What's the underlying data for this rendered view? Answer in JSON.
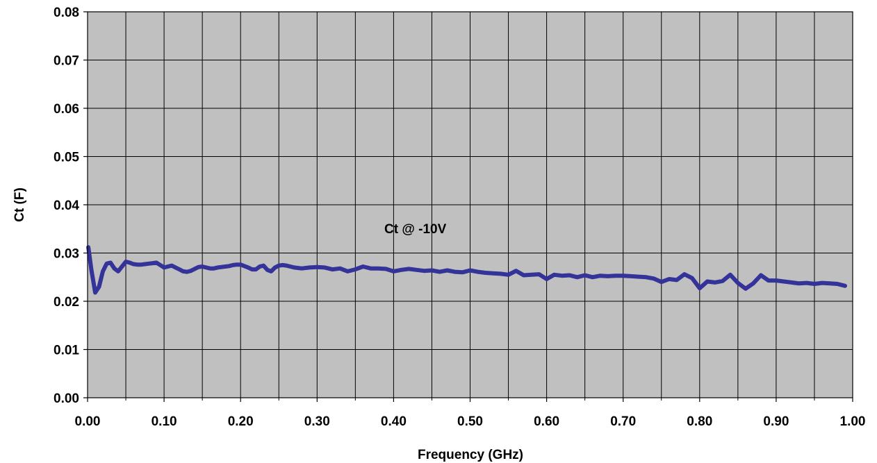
{
  "chart_data": {
    "type": "line",
    "title": "",
    "xlabel": "Frequency (GHz)",
    "ylabel": "Ct (F)",
    "xlim": [
      0,
      1.0
    ],
    "ylim": [
      0,
      0.08
    ],
    "x_ticks": [
      "0.00",
      "0.10",
      "0.20",
      "0.30",
      "0.40",
      "0.50",
      "0.60",
      "0.70",
      "0.80",
      "0.90",
      "1.00"
    ],
    "y_ticks": [
      "0.00",
      "0.01",
      "0.02",
      "0.03",
      "0.04",
      "0.05",
      "0.06",
      "0.07",
      "0.08"
    ],
    "x_minor_step": 0.05,
    "grid": true,
    "annotation": "Ct @ -10V",
    "colors": {
      "plot_background": "#c0c0c0",
      "line": "#333399",
      "grid": "#000000"
    },
    "series": [
      {
        "x": [
          0.001,
          0.005,
          0.01,
          0.015,
          0.02,
          0.025,
          0.03,
          0.035,
          0.04,
          0.045,
          0.05,
          0.055,
          0.06,
          0.065,
          0.07,
          0.075,
          0.08,
          0.085,
          0.09,
          0.095,
          0.1,
          0.105,
          0.11,
          0.115,
          0.12,
          0.125,
          0.13,
          0.135,
          0.14,
          0.145,
          0.15,
          0.155,
          0.16,
          0.165,
          0.17,
          0.175,
          0.18,
          0.185,
          0.19,
          0.195,
          0.2,
          0.205,
          0.21,
          0.215,
          0.22,
          0.225,
          0.23,
          0.235,
          0.24,
          0.245,
          0.25,
          0.255,
          0.26,
          0.27,
          0.28,
          0.29,
          0.3,
          0.31,
          0.32,
          0.33,
          0.34,
          0.35,
          0.36,
          0.37,
          0.38,
          0.39,
          0.4,
          0.41,
          0.42,
          0.43,
          0.44,
          0.45,
          0.46,
          0.47,
          0.48,
          0.49,
          0.5,
          0.51,
          0.52,
          0.53,
          0.54,
          0.55,
          0.56,
          0.57,
          0.58,
          0.59,
          0.6,
          0.61,
          0.62,
          0.63,
          0.64,
          0.65,
          0.66,
          0.67,
          0.68,
          0.69,
          0.7,
          0.71,
          0.72,
          0.73,
          0.74,
          0.75,
          0.76,
          0.77,
          0.78,
          0.79,
          0.8,
          0.81,
          0.82,
          0.83,
          0.84,
          0.85,
          0.86,
          0.87,
          0.88,
          0.89,
          0.9,
          0.91,
          0.92,
          0.93,
          0.94,
          0.95,
          0.96,
          0.97,
          0.98,
          0.99
        ],
        "values": [
          0.0312,
          0.0265,
          0.0218,
          0.023,
          0.0262,
          0.0278,
          0.028,
          0.0268,
          0.0262,
          0.0272,
          0.0282,
          0.028,
          0.0277,
          0.0276,
          0.0276,
          0.0277,
          0.0278,
          0.0279,
          0.028,
          0.0275,
          0.027,
          0.0272,
          0.0274,
          0.027,
          0.0266,
          0.0262,
          0.0261,
          0.0263,
          0.0267,
          0.0271,
          0.0272,
          0.027,
          0.0268,
          0.0268,
          0.027,
          0.0271,
          0.0272,
          0.0273,
          0.0275,
          0.0276,
          0.0276,
          0.0273,
          0.027,
          0.0266,
          0.0266,
          0.0272,
          0.0274,
          0.0265,
          0.0262,
          0.027,
          0.0274,
          0.0275,
          0.0274,
          0.027,
          0.0268,
          0.027,
          0.0271,
          0.027,
          0.0266,
          0.0268,
          0.0262,
          0.0266,
          0.0272,
          0.0268,
          0.0268,
          0.0267,
          0.0262,
          0.0265,
          0.0267,
          0.0265,
          0.0263,
          0.0264,
          0.0261,
          0.0264,
          0.0261,
          0.026,
          0.0264,
          0.0261,
          0.0259,
          0.0258,
          0.0257,
          0.0255,
          0.0263,
          0.0254,
          0.0255,
          0.0256,
          0.0246,
          0.0255,
          0.0253,
          0.0254,
          0.025,
          0.0254,
          0.025,
          0.0253,
          0.0252,
          0.0253,
          0.0253,
          0.0252,
          0.0251,
          0.025,
          0.0247,
          0.024,
          0.0246,
          0.0244,
          0.0256,
          0.0248,
          0.0227,
          0.0241,
          0.0239,
          0.0242,
          0.0255,
          0.0238,
          0.0226,
          0.0237,
          0.0254,
          0.0243,
          0.0243,
          0.0241,
          0.0239,
          0.0237,
          0.0238,
          0.0236,
          0.0238,
          0.0237,
          0.0236,
          0.0232
        ]
      }
    ]
  }
}
